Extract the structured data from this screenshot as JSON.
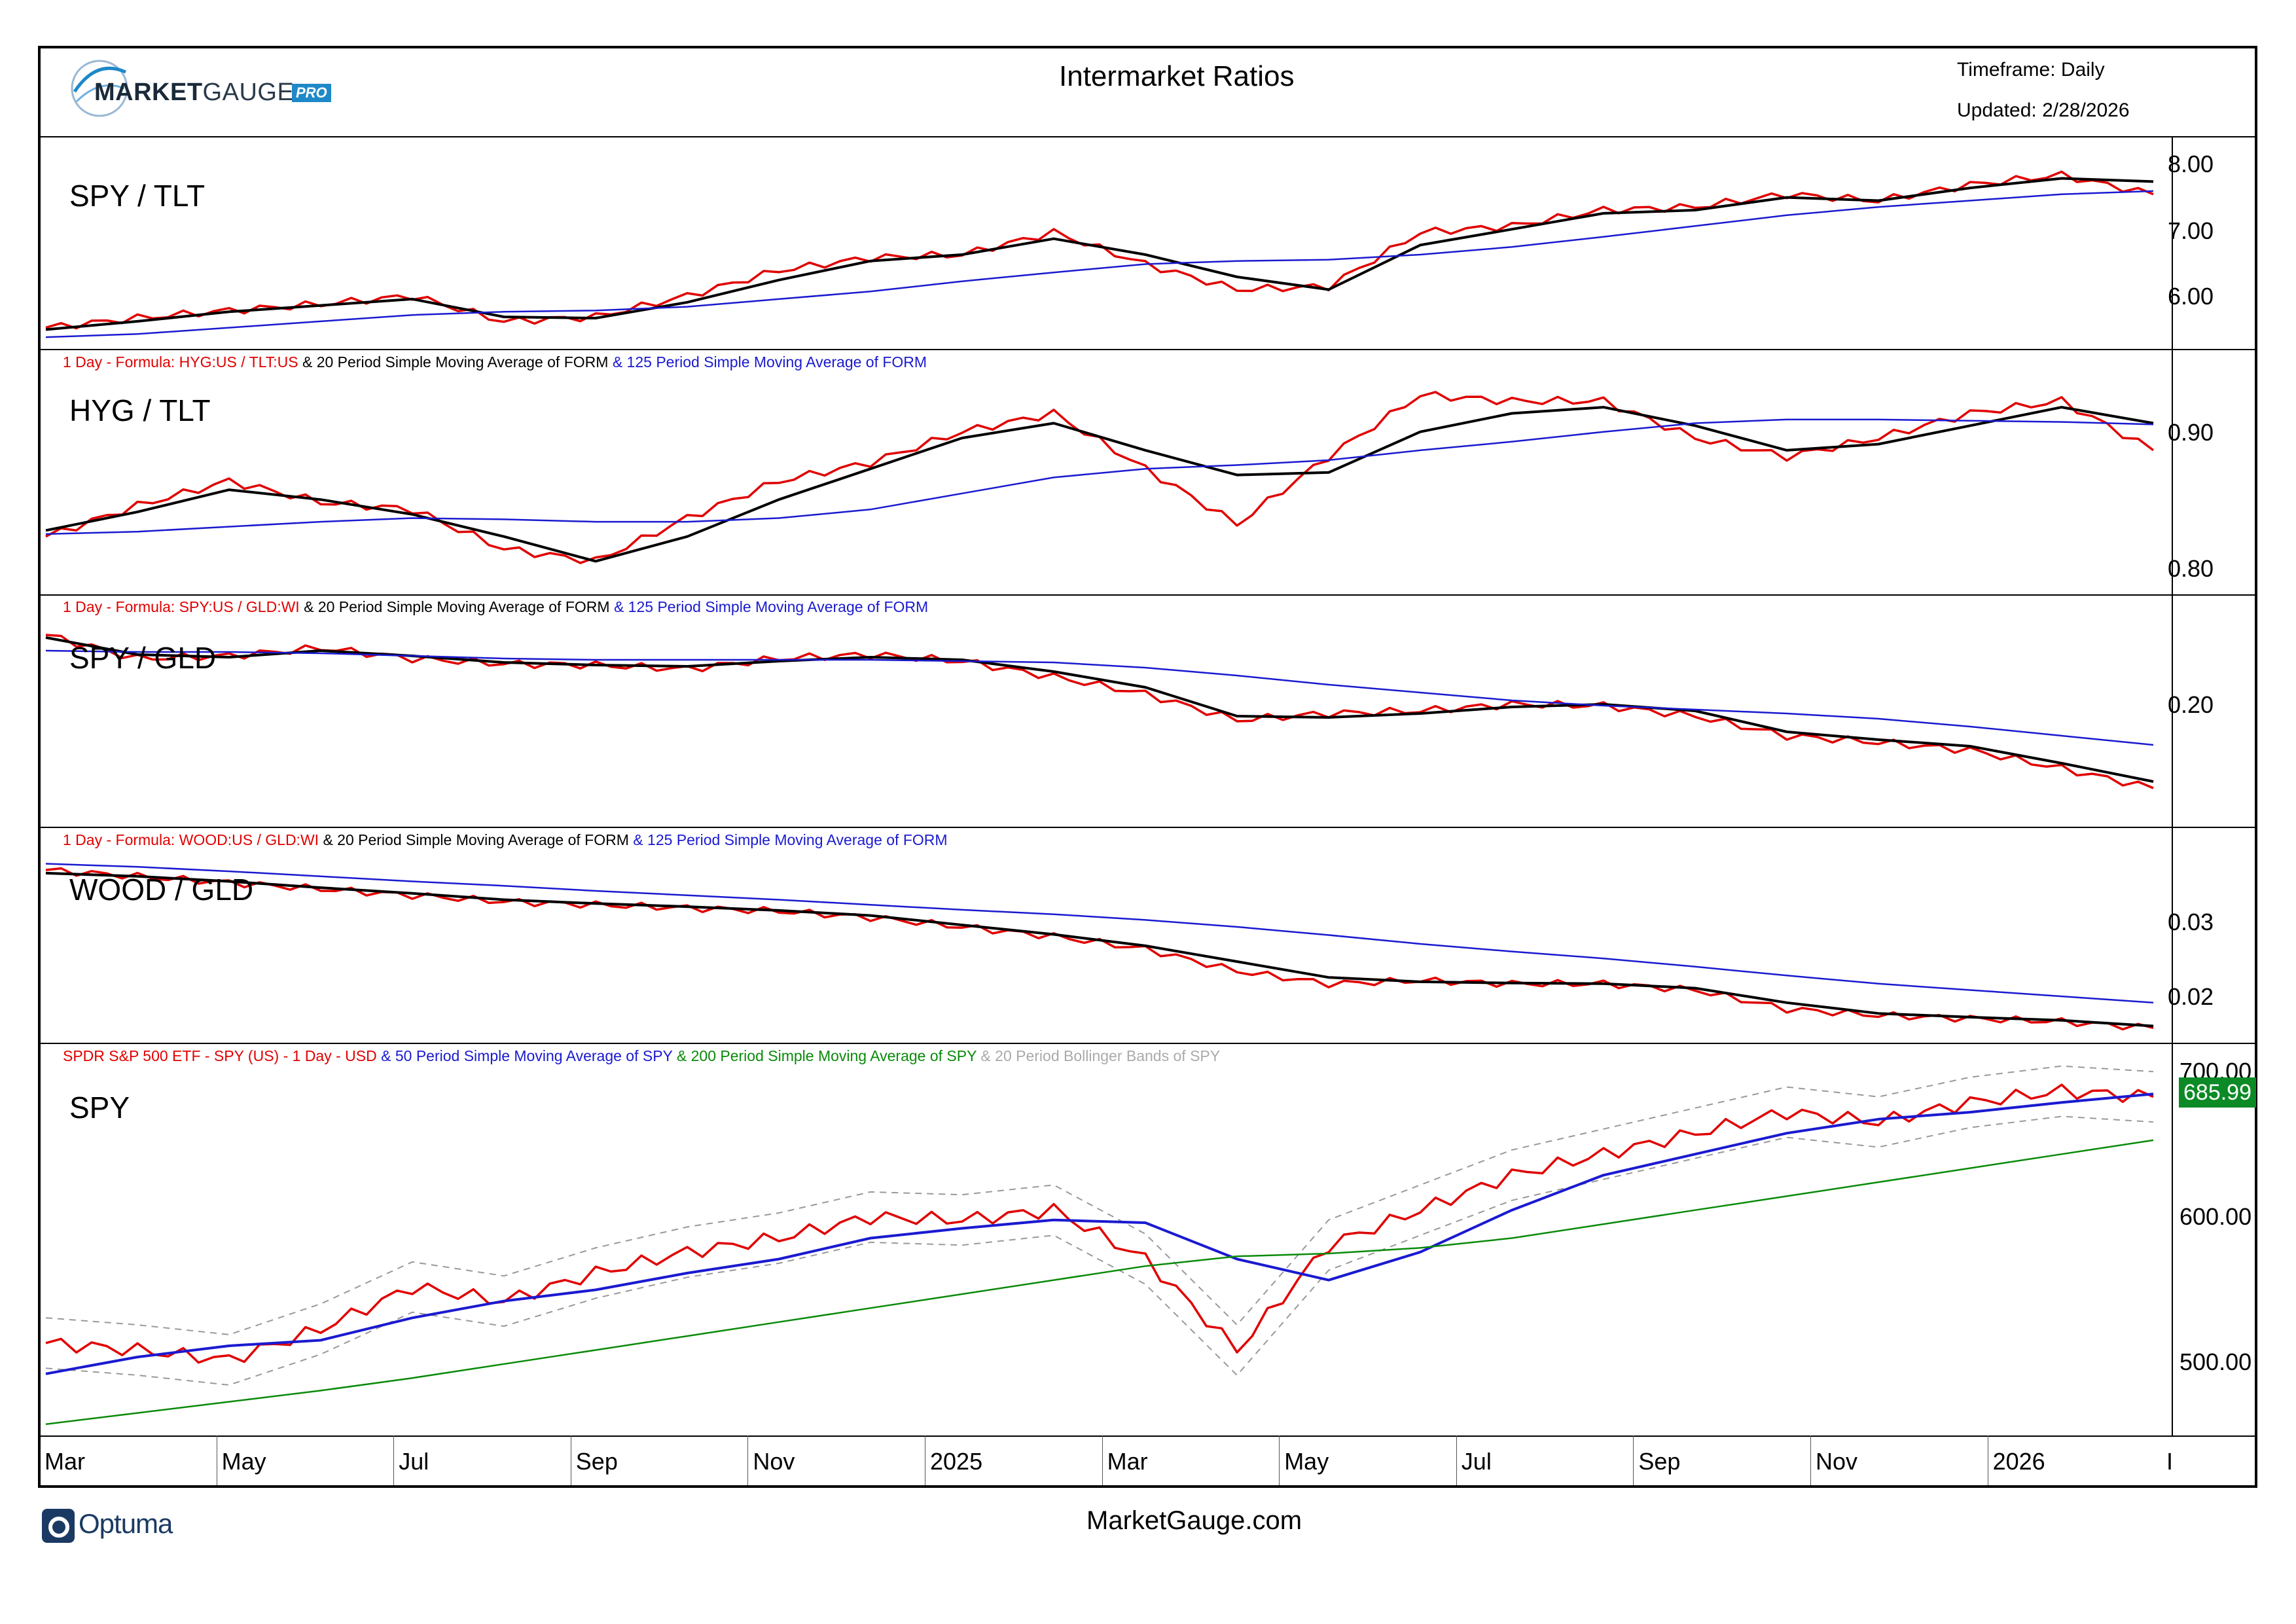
{
  "header": {
    "title": "Intermarket Ratios",
    "timeframe": "Timeframe: Daily",
    "updated": "Updated: 2/28/2026",
    "logo_brand_bold": "MARKET",
    "logo_brand_light": "GAUGE",
    "logo_badge": "PRO"
  },
  "footer": {
    "site": "MarketGauge.com",
    "platform": "Optuma"
  },
  "colors": {
    "ratio": "#e00000",
    "sma20": "#000000",
    "sma125": "#1a1ad0",
    "sma50": "#1a1ad0",
    "sma200": "#0a8a0a",
    "bollinger": "#999999",
    "last_price_bg": "#0b8a26"
  },
  "x_axis": {
    "labels": [
      "Mar",
      "May",
      "Jul",
      "Sep",
      "Nov",
      "2025",
      "Mar",
      "May",
      "Jul",
      "Sep",
      "Nov",
      "2026",
      "I"
    ]
  },
  "chart_data": [
    {
      "type": "line",
      "panel_title": "SPY / TLT",
      "legend": [],
      "yticks": [
        "8.00",
        "7.00",
        "6.00"
      ],
      "ylim": [
        5.25,
        8.3
      ],
      "x": [
        "2024-03",
        "2024-04",
        "2024-05",
        "2024-06",
        "2024-07",
        "2024-08",
        "2024-09",
        "2024-10",
        "2024-11",
        "2024-12",
        "2025-01",
        "2025-02",
        "2025-03",
        "2025-04",
        "2025-05",
        "2025-06",
        "2025-07",
        "2025-08",
        "2025-09",
        "2025-10",
        "2025-11",
        "2025-12",
        "2026-01",
        "2026-02"
      ],
      "series": [
        {
          "values": [
            5.45,
            5.6,
            5.72,
            5.82,
            5.95,
            5.55,
            5.62,
            5.95,
            6.35,
            6.55,
            6.6,
            6.95,
            6.45,
            6.05,
            6.1,
            6.95,
            7.05,
            7.3,
            7.35,
            7.55,
            7.45,
            7.7,
            7.85,
            7.55
          ]
        },
        {
          "values": [
            5.42,
            5.55,
            5.7,
            5.8,
            5.9,
            5.62,
            5.6,
            5.85,
            6.2,
            6.5,
            6.6,
            6.85,
            6.6,
            6.25,
            6.05,
            6.75,
            7.0,
            7.25,
            7.3,
            7.5,
            7.45,
            7.65,
            7.8,
            7.75
          ]
        },
        {
          "values": [
            5.3,
            5.35,
            5.45,
            5.55,
            5.65,
            5.7,
            5.72,
            5.78,
            5.9,
            6.02,
            6.18,
            6.32,
            6.45,
            6.5,
            6.52,
            6.6,
            6.72,
            6.88,
            7.05,
            7.22,
            7.35,
            7.45,
            7.55,
            7.6
          ]
        }
      ]
    },
    {
      "type": "line",
      "panel_title": "HYG / TLT",
      "legend": [
        "1 Day - Formula: HYG:US / TLT:US",
        "& 20 Period Simple Moving Average of FORM",
        "& 125 Period Simple Moving Average of FORM"
      ],
      "yticks": [
        "0.90",
        "0.80"
      ],
      "ylim": [
        0.78,
        0.95
      ],
      "x": [
        "2024-03",
        "2024-04",
        "2024-05",
        "2024-06",
        "2024-07",
        "2024-08",
        "2024-09",
        "2024-10",
        "2024-11",
        "2024-12",
        "2025-01",
        "2025-02",
        "2025-03",
        "2025-04",
        "2025-05",
        "2025-06",
        "2025-07",
        "2025-08",
        "2025-09",
        "2025-10",
        "2025-11",
        "2025-12",
        "2026-01",
        "2026-02"
      ],
      "series": [
        {
          "values": [
            0.82,
            0.845,
            0.865,
            0.848,
            0.842,
            0.81,
            0.8,
            0.835,
            0.865,
            0.88,
            0.905,
            0.92,
            0.875,
            0.83,
            0.885,
            0.935,
            0.93,
            0.93,
            0.9,
            0.885,
            0.9,
            0.92,
            0.93,
            0.89
          ]
        },
        {
          "values": [
            0.825,
            0.84,
            0.858,
            0.85,
            0.838,
            0.82,
            0.8,
            0.82,
            0.85,
            0.875,
            0.9,
            0.912,
            0.89,
            0.87,
            0.872,
            0.905,
            0.92,
            0.925,
            0.91,
            0.89,
            0.895,
            0.91,
            0.925,
            0.912
          ]
        },
        {
          "values": [
            0.822,
            0.824,
            0.828,
            0.832,
            0.835,
            0.834,
            0.832,
            0.832,
            0.835,
            0.842,
            0.855,
            0.868,
            0.875,
            0.878,
            0.882,
            0.89,
            0.897,
            0.905,
            0.912,
            0.915,
            0.915,
            0.914,
            0.913,
            0.911
          ]
        }
      ]
    },
    {
      "type": "line",
      "panel_title": "SPY / GLD",
      "legend": [
        "1 Day - Formula: SPY:US / GLD:WI",
        "& 20 Period Simple Moving Average of FORM",
        "& 125 Period Simple Moving Average of FORM"
      ],
      "yticks": [
        "0.20"
      ],
      "ylim": [
        0.11,
        0.26
      ],
      "x": [
        "2024-03",
        "2024-04",
        "2024-05",
        "2024-06",
        "2024-07",
        "2024-08",
        "2024-09",
        "2024-10",
        "2024-11",
        "2024-12",
        "2025-01",
        "2025-02",
        "2025-03",
        "2025-04",
        "2025-05",
        "2025-06",
        "2025-07",
        "2025-08",
        "2025-09",
        "2025-10",
        "2025-11",
        "2025-12",
        "2026-01",
        "2026-02"
      ],
      "series": [
        {
          "values": [
            0.25,
            0.232,
            0.234,
            0.24,
            0.232,
            0.228,
            0.227,
            0.224,
            0.232,
            0.235,
            0.23,
            0.218,
            0.205,
            0.185,
            0.19,
            0.192,
            0.197,
            0.196,
            0.188,
            0.173,
            0.168,
            0.162,
            0.148,
            0.133
          ]
        },
        {
          "values": [
            0.248,
            0.235,
            0.233,
            0.238,
            0.234,
            0.229,
            0.227,
            0.226,
            0.23,
            0.233,
            0.231,
            0.222,
            0.21,
            0.188,
            0.187,
            0.19,
            0.195,
            0.197,
            0.192,
            0.176,
            0.17,
            0.165,
            0.152,
            0.138
          ]
        },
        {
          "values": [
            0.238,
            0.237,
            0.237,
            0.236,
            0.234,
            0.232,
            0.231,
            0.231,
            0.231,
            0.231,
            0.23,
            0.229,
            0.225,
            0.219,
            0.212,
            0.206,
            0.2,
            0.196,
            0.193,
            0.19,
            0.186,
            0.18,
            0.173,
            0.166
          ]
        }
      ]
    },
    {
      "type": "line",
      "panel_title": "WOOD / GLD",
      "legend": [
        "1 Day - Formula: WOOD:US / GLD:WI",
        "& 20 Period Simple Moving Average of FORM",
        "& 125 Period Simple Moving Average of FORM"
      ],
      "yticks": [
        "0.03",
        "0.02"
      ],
      "ylim": [
        0.0155,
        0.044
      ],
      "x": [
        "2024-03",
        "2024-04",
        "2024-05",
        "2024-06",
        "2024-07",
        "2024-08",
        "2024-09",
        "2024-10",
        "2024-11",
        "2024-12",
        "2025-01",
        "2025-02",
        "2025-03",
        "2025-04",
        "2025-05",
        "2025-06",
        "2025-07",
        "2025-08",
        "2025-09",
        "2025-10",
        "2025-11",
        "2025-12",
        "2026-01",
        "2026-02"
      ],
      "series": [
        {
          "values": [
            0.0415,
            0.0405,
            0.0395,
            0.0385,
            0.0375,
            0.0365,
            0.036,
            0.0355,
            0.035,
            0.034,
            0.0325,
            0.031,
            0.029,
            0.0255,
            0.0235,
            0.024,
            0.0235,
            0.0235,
            0.0225,
            0.0195,
            0.0185,
            0.018,
            0.0175,
            0.0165
          ]
        },
        {
          "values": [
            0.041,
            0.0405,
            0.0397,
            0.0387,
            0.0378,
            0.0368,
            0.0362,
            0.0357,
            0.0351,
            0.0343,
            0.0328,
            0.0313,
            0.0295,
            0.027,
            0.0245,
            0.0238,
            0.0236,
            0.0235,
            0.0228,
            0.0205,
            0.0188,
            0.0182,
            0.0177,
            0.0168
          ]
        },
        {
          "values": [
            0.0425,
            0.042,
            0.0413,
            0.0405,
            0.0397,
            0.039,
            0.0382,
            0.0375,
            0.0368,
            0.036,
            0.0352,
            0.0345,
            0.0336,
            0.0325,
            0.0312,
            0.0298,
            0.0286,
            0.0275,
            0.0262,
            0.0248,
            0.0235,
            0.0225,
            0.0215,
            0.0205
          ]
        }
      ]
    },
    {
      "type": "line",
      "panel_title": "SPY",
      "legend": [
        "SPDR S&P 500 ETF - SPY (US) - 1 Day - USD",
        "& 50 Period Simple Moving Average of SPY",
        "& 200 Period Simple Moving Average of SPY",
        "& 20 Period Bollinger Bands of SPY"
      ],
      "yticks": [
        "700.00",
        "600.00",
        "500.00"
      ],
      "ylim": [
        450,
        705
      ],
      "last_price": "685.99",
      "x": [
        "2024-03",
        "2024-04",
        "2024-05",
        "2024-06",
        "2024-07",
        "2024-08",
        "2024-09",
        "2024-10",
        "2024-11",
        "2024-12",
        "2025-01",
        "2025-02",
        "2025-03",
        "2025-04",
        "2025-05",
        "2025-06",
        "2025-07",
        "2025-08",
        "2025-09",
        "2025-10",
        "2025-11",
        "2025-12",
        "2026-01",
        "2026-02"
      ],
      "series": [
        {
          "values": [
            510,
            505,
            498,
            520,
            550,
            540,
            560,
            575,
            585,
            600,
            598,
            605,
            570,
            505,
            580,
            605,
            630,
            645,
            660,
            675,
            668,
            682,
            690,
            686
          ]
        },
        {
          "values": [
            488,
            500,
            508,
            512,
            528,
            540,
            548,
            560,
            570,
            585,
            592,
            598,
            596,
            570,
            555,
            575,
            605,
            630,
            645,
            660,
            670,
            675,
            682,
            688
          ]
        },
        {
          "values": [
            452,
            460,
            468,
            476,
            485,
            495,
            505,
            515,
            525,
            535,
            545,
            555,
            565,
            572,
            574,
            578,
            585,
            595,
            605,
            615,
            625,
            635,
            645,
            655
          ]
        }
      ]
    }
  ]
}
